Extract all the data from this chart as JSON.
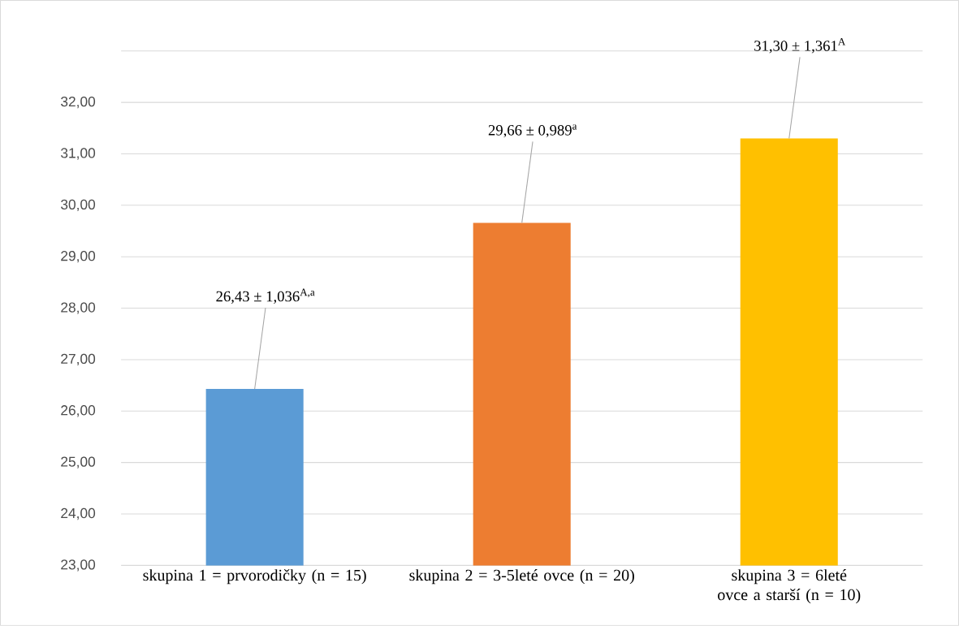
{
  "chart_data": {
    "type": "bar",
    "categories": [
      "skupina 1 = prvorodičky (n = 15)",
      "skupina 2 = 3-5leté ovce (n = 20)",
      "skupina 3 = 6leté ovce a starší (n = 10)"
    ],
    "values": [
      26.43,
      29.66,
      31.3
    ],
    "colors": [
      "#5b9bd5",
      "#ed7d31",
      "#ffc000"
    ],
    "value_labels": [
      "26,43 ± 1,036$^{A,a}$",
      "29,66 ± 0,989$^{a}$",
      "31,30 ± 1,361$^{A}$"
    ],
    "ylim": [
      23,
      33
    ],
    "yticks": [
      {
        "value": 23,
        "label": "23,00"
      },
      {
        "value": 24,
        "label": "24,00"
      },
      {
        "value": 25,
        "label": "25,00"
      },
      {
        "value": 26,
        "label": "26,00"
      },
      {
        "value": 27,
        "label": "27,00"
      },
      {
        "value": 28,
        "label": "28,00"
      },
      {
        "value": 29,
        "label": "29,00"
      },
      {
        "value": 30,
        "label": "30,00"
      },
      {
        "value": 31,
        "label": "31,00"
      },
      {
        "value": 32,
        "label": "32,00"
      },
      {
        "value": 33,
        "label": null
      }
    ],
    "grid": "y"
  }
}
